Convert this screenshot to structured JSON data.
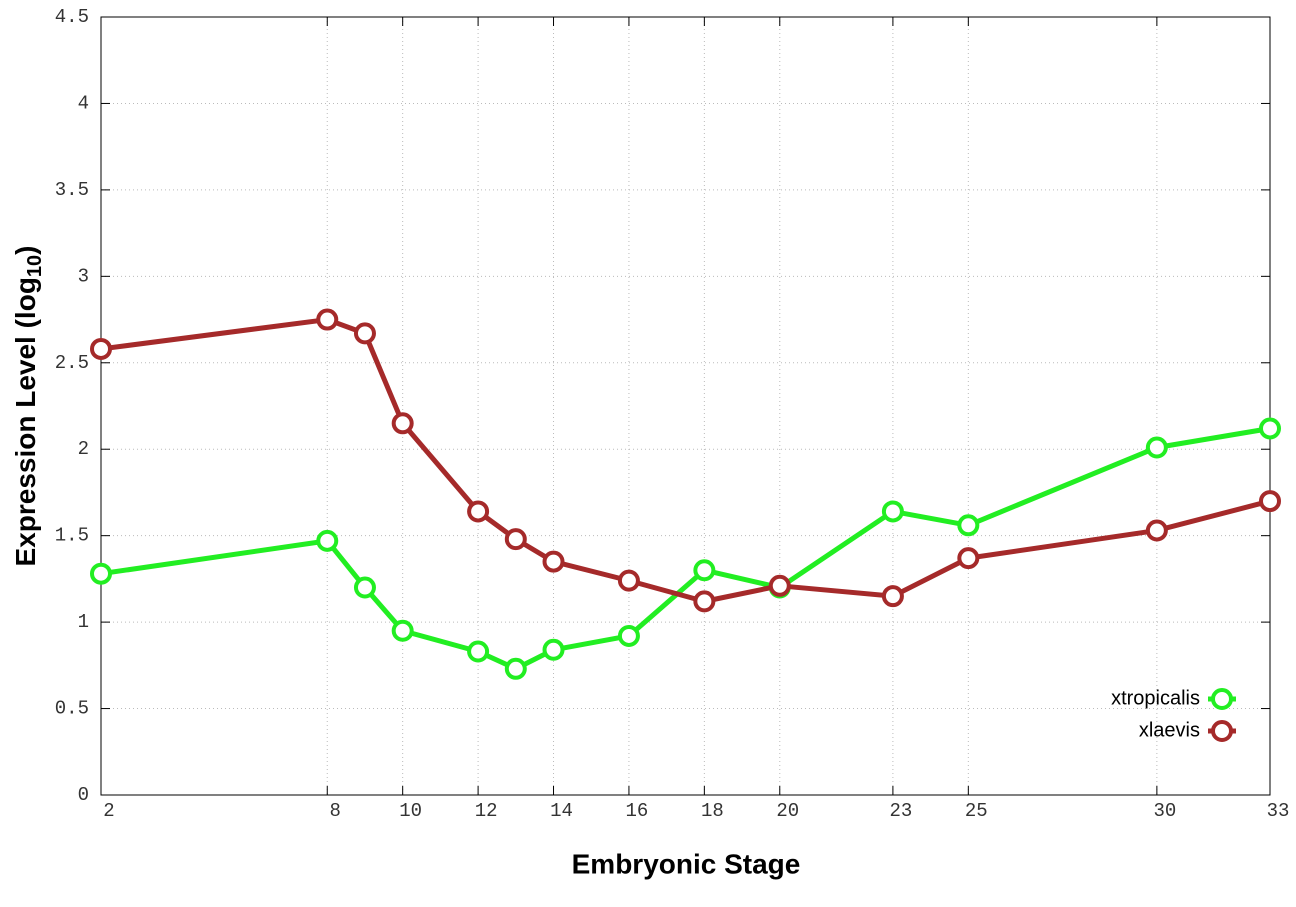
{
  "chart_data": {
    "type": "line",
    "x_label": "Embryonic Stage",
    "y_label": {
      "text": "Expression Level (log",
      "subscript": "10",
      "suffix": ")"
    },
    "x": [
      2,
      8,
      9,
      10,
      12,
      13,
      14,
      16,
      18,
      20,
      23,
      25,
      30,
      33
    ],
    "series": [
      {
        "name": "xtropicalis",
        "color": "#22ee22",
        "values": [
          1.28,
          1.47,
          1.2,
          0.95,
          0.83,
          0.73,
          0.84,
          0.92,
          1.3,
          1.2,
          1.64,
          1.56,
          2.01,
          2.12
        ]
      },
      {
        "name": "xlaevis",
        "color": "#a52a2a",
        "values": [
          2.58,
          2.75,
          2.67,
          2.15,
          1.64,
          1.48,
          1.35,
          1.24,
          1.12,
          1.21,
          1.15,
          1.37,
          1.53,
          1.7
        ]
      }
    ],
    "xlim": [
      2,
      33
    ],
    "xticks": [
      2,
      8,
      10,
      12,
      14,
      16,
      18,
      20,
      23,
      25,
      30,
      33
    ],
    "ylim": [
      0,
      4.5
    ],
    "yticks": [
      0,
      0.5,
      1,
      1.5,
      2,
      2.5,
      3,
      3.5,
      4,
      4.5
    ],
    "grid": true,
    "legend": "lower right"
  }
}
